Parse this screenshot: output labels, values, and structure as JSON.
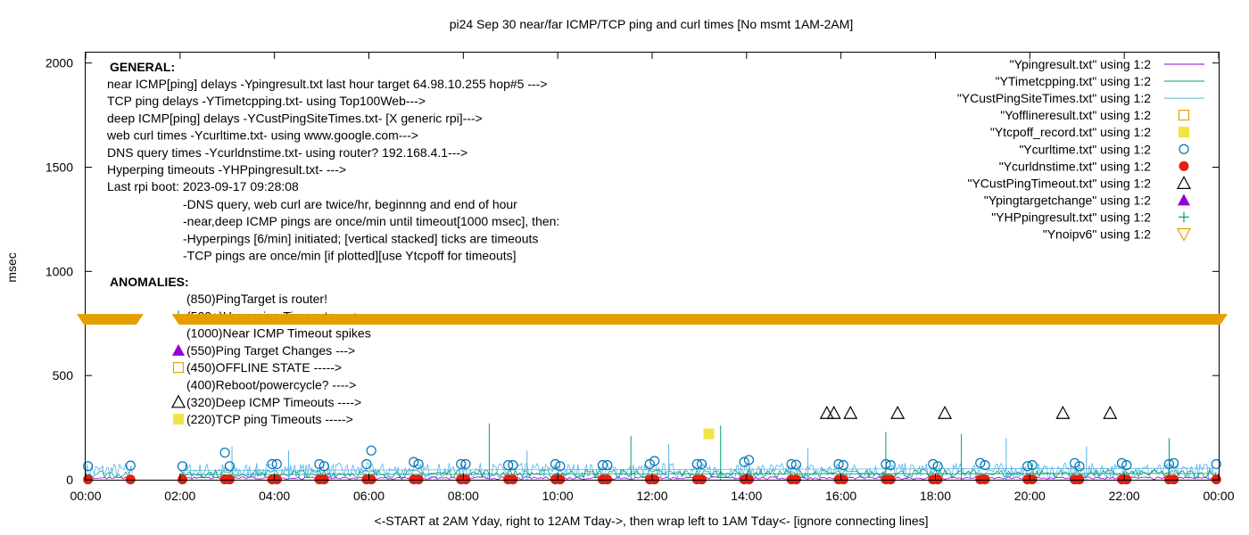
{
  "chart_data": {
    "type": "line",
    "title": "pi24 Sep 30  near/far ICMP/TCP ping and curl times [No msmt 1AM-2AM]",
    "xlabel": "<-START at 2AM Yday, right to 12AM Tday->, then wrap left to 1AM Tday<- [ignore connecting lines]",
    "ylabel": "msec",
    "xlim": [
      0,
      24
    ],
    "ylim": [
      0,
      2050
    ],
    "x_ticks": [
      "00:00",
      "02:00",
      "04:00",
      "06:00",
      "08:00",
      "10:00",
      "12:00",
      "14:00",
      "16:00",
      "18:00",
      "20:00",
      "22:00",
      "00:00"
    ],
    "y_ticks": [
      0,
      500,
      1000,
      1500,
      2000
    ],
    "grid": false,
    "legend_position": "top-right",
    "colors": {
      "ping": "#9400d3",
      "tcp": "#009e73",
      "cust": "#56b4e9",
      "offline": "#e69f00",
      "tcpoff": "#f0e442",
      "curl": "#0072b2",
      "dns": "#e51e10",
      "timeout": "#000000",
      "target": "#9400d3",
      "hpping": "#009e73",
      "noipv6": "#e69f00"
    },
    "legend": [
      {
        "label": "\"Ypingresult.txt\" using 1:2",
        "style": "line",
        "color": "ping"
      },
      {
        "label": "\"YTimetcpping.txt\" using 1:2",
        "style": "line",
        "color": "tcp"
      },
      {
        "label": "\"YCustPingSiteTimes.txt\" using 1:2",
        "style": "line",
        "color": "cust"
      },
      {
        "label": "\"Yofflineresult.txt\" using 1:2",
        "style": "square-open",
        "color": "offline"
      },
      {
        "label": "\"Ytcpoff_record.txt\" using 1:2",
        "style": "square-filled",
        "color": "tcpoff"
      },
      {
        "label": "\"Ycurltime.txt\" using 1:2",
        "style": "circle-open",
        "color": "curl"
      },
      {
        "label": "\"Ycurldnstime.txt\" using 1:2",
        "style": "circle-filled",
        "color": "dns"
      },
      {
        "label": "\"YCustPingTimeout.txt\" using 1:2",
        "style": "triangle-open",
        "color": "timeout"
      },
      {
        "label": "\"Ypingtargetchange\" using 1:2",
        "style": "triangle-filled",
        "color": "target"
      },
      {
        "label": "\"YHPpingresult.txt\" using 1:2",
        "style": "plus",
        "color": "hpping"
      },
      {
        "label": "\"Ynoipv6\" using 1:2",
        "style": "triangle-down-open",
        "color": "noipv6"
      }
    ],
    "general_header": "GENERAL:",
    "general_lines": [
      "near ICMP[ping] delays -Ypingresult.txt last hour target 64.98.10.255 hop#5 --->",
      "TCP ping delays -YTimetcpping.txt- using Top100Web--->",
      "deep ICMP[ping] delays -YCustPingSiteTimes.txt- [X generic rpi]--->",
      "web curl times -Ycurltime.txt- using www.google.com--->",
      "DNS query times -Ycurldnstime.txt- using router? 192.168.4.1--->",
      "Hyperping timeouts -YHPpingresult.txt- --->",
      "Last rpi boot: 2023-09-17 09:28:08"
    ],
    "general_notes": [
      "-DNS query, web curl are twice/hr, beginnng and end of hour",
      "-near,deep ICMP pings are once/min until timeout[1000 msec], then:",
      "  -Hyperpings [6/min] initiated; [vertical stacked] ticks are timeouts",
      "-TCP pings are once/min [if plotted][use Ytcpoff for timeouts]"
    ],
    "anomalies_header": "ANOMALIES:",
    "anomalies": [
      {
        "label": "(850)PingTarget is router!",
        "marker": ""
      },
      {
        "label": "(500+)Hyperping Timeouts ---->",
        "marker": "plus"
      },
      {
        "label": "(1000)Near ICMP Timeout spikes",
        "marker": ""
      },
      {
        "label": "(550)Ping Target Changes --->",
        "marker": "triangle-filled"
      },
      {
        "label": "(450)OFFLINE STATE ----->",
        "marker": "square-open"
      },
      {
        "label": "(400)Reboot/powercycle? ---->",
        "marker": ""
      },
      {
        "label": "(320)Deep ICMP Timeouts ---->",
        "marker": "triangle-open"
      },
      {
        "label": "(220)TCP ping Timeouts ----->",
        "marker": "square-filled"
      }
    ],
    "noipv6_band": {
      "y": 770,
      "x_start": 0,
      "x_end": 24,
      "gap": [
        1.15,
        1.9
      ]
    },
    "series": {
      "curl_circles": {
        "x": [
          0.05,
          0.95,
          2.05,
          2.95,
          3.05,
          3.95,
          4.05,
          4.95,
          5.05,
          5.95,
          6.05,
          6.95,
          7.05,
          7.95,
          8.05,
          8.95,
          9.05,
          9.95,
          10.05,
          10.95,
          11.05,
          11.95,
          12.05,
          12.95,
          13.05,
          13.95,
          14.05,
          14.95,
          15.05,
          15.95,
          16.05,
          16.95,
          17.05,
          17.95,
          18.05,
          18.95,
          19.05,
          19.95,
          20.05,
          20.95,
          21.05,
          21.95,
          22.05,
          22.95,
          23.05,
          23.95
        ],
        "y": [
          65,
          68,
          65,
          130,
          65,
          75,
          75,
          75,
          65,
          75,
          140,
          85,
          75,
          75,
          75,
          70,
          70,
          75,
          65,
          70,
          70,
          75,
          90,
          75,
          75,
          85,
          95,
          75,
          72,
          75,
          70,
          75,
          70,
          75,
          65,
          80,
          70,
          65,
          70,
          80,
          65,
          80,
          70,
          75,
          80,
          75
        ]
      },
      "dns_dots": {
        "x": [
          0.05,
          0.95,
          2.05,
          2.95,
          3.05,
          3.95,
          4.05,
          4.95,
          5.05,
          5.95,
          6.05,
          6.95,
          7.05,
          7.95,
          8.05,
          8.95,
          9.05,
          9.95,
          10.05,
          10.95,
          11.05,
          11.95,
          12.05,
          12.95,
          13.05,
          13.95,
          14.05,
          14.95,
          15.05,
          15.95,
          16.05,
          16.95,
          17.05,
          17.95,
          18.05,
          18.95,
          19.05,
          19.95,
          20.05,
          20.95,
          21.05,
          21.95,
          22.05,
          22.95,
          23.05,
          23.95
        ],
        "y": [
          1,
          1,
          1,
          1,
          1,
          1,
          1,
          1,
          1,
          1,
          1,
          1,
          1,
          1,
          1,
          1,
          1,
          1,
          1,
          1,
          1,
          1,
          1,
          1,
          1,
          1,
          1,
          1,
          1,
          1,
          1,
          1,
          1,
          1,
          1,
          1,
          1,
          1,
          1,
          1,
          1,
          1,
          1,
          1,
          1,
          1
        ]
      },
      "cust_timeouts": {
        "x": [
          15.7,
          15.85,
          16.2,
          17.2,
          18.2,
          20.7,
          21.7
        ],
        "y": [
          320,
          320,
          320,
          320,
          320,
          320,
          320
        ]
      },
      "tcp_timeouts": {
        "x": [
          13.2
        ],
        "y": [
          220
        ]
      },
      "tcp_spikes": {
        "x": [
          8.55,
          11.55,
          13.45,
          16.95,
          18.55,
          22.95
        ],
        "y": [
          270,
          210,
          260,
          230,
          220,
          200
        ]
      },
      "cust_spikes": {
        "x": [
          3.1,
          4.3,
          9.35,
          12.35,
          15.3,
          19.5,
          21.2
        ],
        "y": [
          160,
          140,
          140,
          170,
          150,
          200,
          160
        ]
      }
    }
  }
}
